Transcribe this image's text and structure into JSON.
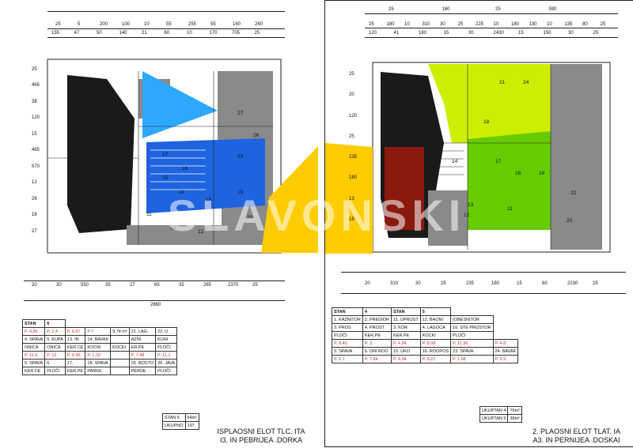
{
  "watermark": "SLAVONSKI",
  "left_plan": {
    "top_dims_row1": [
      "25",
      "5",
      "200",
      "100",
      "10",
      "55",
      "255",
      "55",
      "160",
      "260"
    ],
    "top_dims_row2": [
      "155",
      "47",
      "50",
      "140",
      "21",
      "60",
      "10",
      "170",
      "705",
      "25"
    ],
    "side_dims": [
      "25",
      "465",
      "38",
      "120",
      "15",
      "465",
      "570",
      "12",
      "26",
      "18",
      "27"
    ],
    "room_numbers": [
      "27",
      "26",
      "23",
      "17",
      "16",
      "15",
      "11",
      "14",
      "18",
      "13",
      "12",
      "19",
      "20"
    ],
    "bottom_dims_row1": [
      "20",
      "30",
      "550",
      "35",
      "27",
      "65",
      "35",
      "265",
      "2370",
      "25"
    ],
    "bottom_total": "2860",
    "table_header": [
      "STAN",
      "6"
    ],
    "table_rows": [
      [
        "P. 4.80",
        "P. 2.4",
        "P. 6.67",
        "P.7",
        "9.74 m²",
        "21. LAG.",
        "22. U"
      ],
      [
        "4. SPAVA",
        "5. KUPA",
        "13. IN",
        "14. BAVAK",
        "",
        "AZNI",
        "KUHI"
      ],
      [
        "ONICA",
        "ONICA",
        "KER.CE",
        "KOCKI",
        "KOCKI",
        "ER.PE",
        "PLOČI"
      ],
      [
        "P. 11.6",
        "P. 12.",
        "P. 6.96",
        "P. 1.32",
        "",
        "P. 7.48",
        "P. 11.1"
      ],
      [
        "5. SPAVA",
        "6.",
        "17.",
        "18. SPAVA",
        "",
        "25. BOSTO",
        "26. JAVA"
      ],
      [
        "KER.CE",
        "PLOČI",
        "KER.PE",
        "PARKE",
        "",
        "PERDE",
        "PLOČI"
      ]
    ],
    "summary": [
      [
        "STAN 6",
        "64m²"
      ],
      [
        "UKUPNO",
        "197"
      ]
    ],
    "caption_line1": "ISPLAOSNI ELOT TLC. ITA",
    "caption_line2": "I3. IN PEBRIJEA .DORKA"
  },
  "right_plan": {
    "top_dims_row1": [
      "25",
      "160",
      "25",
      "590"
    ],
    "top_dims_row2": [
      "25",
      "180",
      "10",
      "310",
      "30",
      "25",
      "225",
      "10",
      "180",
      "130",
      "10",
      "135",
      "80",
      "25"
    ],
    "top_dims_row3": [
      "120",
      "41",
      "180",
      "15",
      "30",
      "2430",
      "15",
      "150",
      "30",
      "25"
    ],
    "side_dims": [
      "25",
      "20",
      "120",
      "25",
      "235",
      "180",
      "13",
      "18"
    ],
    "room_numbers": [
      "21",
      "24",
      "18",
      "14",
      "17",
      "16",
      "11",
      "13",
      "12",
      "22",
      "19",
      "20"
    ],
    "bottom_dims_row1": [
      "20",
      "310",
      "30",
      "25",
      "235",
      "180",
      "15",
      "60",
      "2230",
      "25"
    ],
    "table_header": [
      "STAN",
      "4",
      "STAN",
      "5"
    ],
    "table_rows": [
      [
        "1. KAZNITOR",
        "2. PREDIOR",
        "11. UPROST",
        "12. BAONI",
        "(OBESNITOR"
      ],
      [
        "3. PROS",
        "4. PROST",
        "3. KOR",
        "4. LAGOCA",
        "10. STE PROSTOR"
      ],
      [
        "PLOČI",
        "KER.PE",
        "KER.PE",
        "KOCKI",
        "PLOČI"
      ],
      [
        "P. 8.40",
        "P. 3.",
        "P. 4.84",
        "P. 8.98",
        "P. 11.96",
        "P. 4.8"
      ],
      [
        "5. SPAVA",
        "6. DNI ROO",
        "15. UKO",
        "16. ROOPOS",
        "23. SPAVA",
        "24. BAVAK"
      ],
      [
        "P. 5.1",
        "P. 7.84",
        "P. 4.04",
        "P. 8.21",
        "P. 1.98",
        "P. 3.9"
      ]
    ],
    "summary": [
      [
        "UKUPTAN 4",
        "76m²"
      ],
      [
        "UKUPTAN 5",
        "38m²"
      ]
    ],
    "caption_line1": "2. PLAOSNI ELOT TLAT. IA",
    "caption_line2": "A3. IN PERNIJEA .DOSKAI"
  },
  "colors": {
    "blue": "#1f63e0",
    "sky": "#2ea8ff",
    "yellow": "#ffcc00",
    "dark_red": "#8b1a0e",
    "green": "#66cc00",
    "lime": "#ccee00",
    "gray": "#8a8a8a",
    "black": "#1a1a1a"
  }
}
